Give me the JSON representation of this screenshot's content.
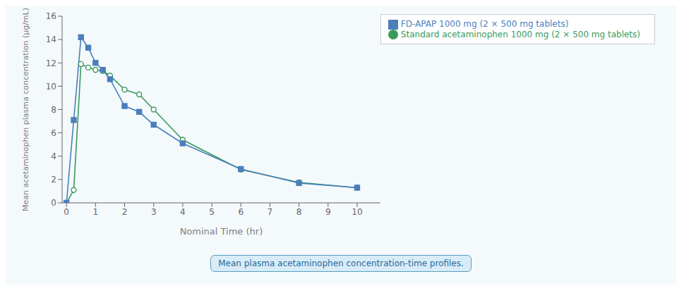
{
  "chart_data": {
    "type": "line",
    "xlabel": "Nominal Time (hr)",
    "ylabel": "Mean acetaminophen plasma concentration (µg/mL)",
    "annotations": [
      "Mean plasma acetaminophen concentration-time profiles."
    ],
    "x": [
      0,
      0.25,
      0.5,
      0.75,
      1.0,
      1.25,
      1.5,
      2.0,
      2.5,
      3.0,
      4.0,
      6.0,
      8.0,
      10.0
    ],
    "series": [
      {
        "name": "Standard acetaminophen 1000 mg (2 × 500 mg tablets)",
        "color": "#3a9a5c",
        "marker": "circle",
        "values": [
          0,
          1.1,
          11.9,
          11.6,
          11.4,
          11.3,
          10.9,
          9.7,
          9.3,
          8.0,
          5.4,
          2.85,
          1.75,
          1.3
        ]
      },
      {
        "name": "FD-APAP 1000 mg (2 × 500 mg tablets)",
        "color": "#4a7fbc",
        "marker": "square",
        "values": [
          0,
          7.1,
          14.2,
          13.3,
          12.0,
          11.4,
          10.6,
          8.3,
          7.8,
          6.7,
          5.1,
          2.9,
          1.7,
          1.3
        ]
      }
    ],
    "xlim": [
      -0.15,
      10.8
    ],
    "xticks": [
      0,
      1,
      2,
      3,
      4,
      5,
      6,
      7,
      8,
      9,
      10
    ],
    "ylim": [
      0,
      16
    ],
    "yticks": [
      0,
      2,
      4,
      6,
      8,
      10,
      12,
      14,
      16
    ],
    "grid": false,
    "legend": "upper right"
  }
}
